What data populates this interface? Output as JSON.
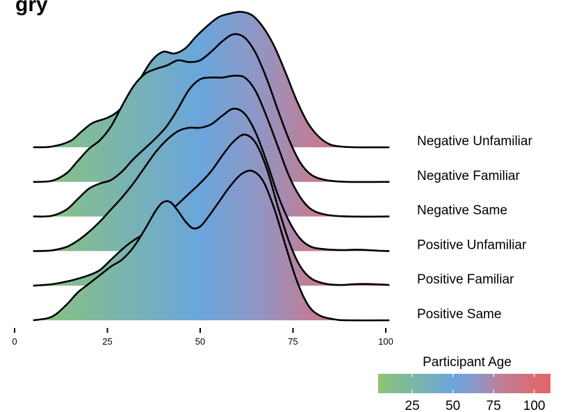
{
  "title_visible_fragment": "gry",
  "chart_data": {
    "type": "ridgeline",
    "xlim": [
      0,
      100
    ],
    "x_ticks": [
      0,
      25,
      50,
      75,
      100
    ],
    "color_scale": {
      "title": "Participant Age",
      "ticks": [
        25,
        50,
        75,
        100
      ],
      "range": [
        4,
        110
      ],
      "stops": [
        {
          "value": 5,
          "color": "#8cc47a"
        },
        {
          "value": 50,
          "color": "#6aa6dc"
        },
        {
          "value": 65,
          "color": "#8e97c6"
        },
        {
          "value": 80,
          "color": "#c07e98"
        },
        {
          "value": 110,
          "color": "#e36363"
        }
      ]
    },
    "series": [
      {
        "name": "Negative Unfamiliar",
        "points": [
          [
            5,
            0
          ],
          [
            10,
            0.02
          ],
          [
            15,
            0.18
          ],
          [
            18,
            0.45
          ],
          [
            21,
            0.7
          ],
          [
            25,
            0.85
          ],
          [
            28,
            1.05
          ],
          [
            31,
            1.45
          ],
          [
            34,
            2.0
          ],
          [
            37,
            2.5
          ],
          [
            40,
            2.75
          ],
          [
            43,
            2.7
          ],
          [
            46,
            2.85
          ],
          [
            49,
            3.2
          ],
          [
            52,
            3.5
          ],
          [
            55,
            3.75
          ],
          [
            58,
            3.85
          ],
          [
            61,
            3.9
          ],
          [
            64,
            3.8
          ],
          [
            67,
            3.45
          ],
          [
            70,
            2.9
          ],
          [
            73,
            2.15
          ],
          [
            76,
            1.35
          ],
          [
            79,
            0.7
          ],
          [
            82,
            0.3
          ],
          [
            85,
            0.08
          ],
          [
            88,
            0.02
          ],
          [
            92,
            0
          ],
          [
            101,
            0
          ]
        ]
      },
      {
        "name": "Negative Familiar",
        "points": [
          [
            5,
            0
          ],
          [
            10,
            0.03
          ],
          [
            14,
            0.25
          ],
          [
            17,
            0.6
          ],
          [
            20,
            0.95
          ],
          [
            23,
            1.2
          ],
          [
            26,
            1.6
          ],
          [
            29,
            2.2
          ],
          [
            32,
            2.75
          ],
          [
            35,
            3.1
          ],
          [
            38,
            3.25
          ],
          [
            41,
            3.35
          ],
          [
            44,
            3.5
          ],
          [
            47,
            3.45
          ],
          [
            50,
            3.5
          ],
          [
            53,
            3.75
          ],
          [
            56,
            4.05
          ],
          [
            59,
            4.25
          ],
          [
            62,
            4.15
          ],
          [
            65,
            3.7
          ],
          [
            68,
            2.95
          ],
          [
            71,
            2.05
          ],
          [
            74,
            1.2
          ],
          [
            77,
            0.55
          ],
          [
            80,
            0.2
          ],
          [
            84,
            0.05
          ],
          [
            90,
            0
          ],
          [
            101,
            0
          ]
        ]
      },
      {
        "name": "Negative Same",
        "points": [
          [
            5,
            0
          ],
          [
            10,
            0.02
          ],
          [
            14,
            0.2
          ],
          [
            17,
            0.5
          ],
          [
            20,
            0.8
          ],
          [
            23,
            0.95
          ],
          [
            26,
            1.05
          ],
          [
            29,
            1.3
          ],
          [
            32,
            1.65
          ],
          [
            35,
            1.95
          ],
          [
            38,
            2.25
          ],
          [
            41,
            2.6
          ],
          [
            44,
            3.1
          ],
          [
            47,
            3.65
          ],
          [
            50,
            3.95
          ],
          [
            53,
            4.0
          ],
          [
            56,
            4.0
          ],
          [
            59,
            4.05
          ],
          [
            62,
            4.0
          ],
          [
            65,
            3.6
          ],
          [
            68,
            2.85
          ],
          [
            71,
            2.0
          ],
          [
            74,
            1.15
          ],
          [
            77,
            0.55
          ],
          [
            80,
            0.2
          ],
          [
            84,
            0.05
          ],
          [
            90,
            0
          ],
          [
            101,
            0
          ]
        ]
      },
      {
        "name": "Positive Unfamiliar",
        "points": [
          [
            5,
            0
          ],
          [
            10,
            0.02
          ],
          [
            14,
            0.12
          ],
          [
            17,
            0.3
          ],
          [
            20,
            0.55
          ],
          [
            23,
            0.85
          ],
          [
            26,
            1.2
          ],
          [
            29,
            1.55
          ],
          [
            32,
            1.95
          ],
          [
            35,
            2.4
          ],
          [
            38,
            2.85
          ],
          [
            41,
            3.2
          ],
          [
            44,
            3.45
          ],
          [
            47,
            3.55
          ],
          [
            50,
            3.55
          ],
          [
            53,
            3.65
          ],
          [
            56,
            3.9
          ],
          [
            59,
            4.1
          ],
          [
            62,
            3.95
          ],
          [
            65,
            3.4
          ],
          [
            68,
            2.55
          ],
          [
            71,
            1.6
          ],
          [
            74,
            0.85
          ],
          [
            77,
            0.35
          ],
          [
            80,
            0.12
          ],
          [
            84,
            0.05
          ],
          [
            88,
            0.03
          ],
          [
            92,
            0.04
          ],
          [
            95,
            0.03
          ],
          [
            98,
            0.01
          ],
          [
            101,
            0
          ]
        ]
      },
      {
        "name": "Positive Familiar",
        "points": [
          [
            5,
            0
          ],
          [
            10,
            0.04
          ],
          [
            14,
            0.12
          ],
          [
            17,
            0.2
          ],
          [
            20,
            0.3
          ],
          [
            23,
            0.45
          ],
          [
            26,
            0.75
          ],
          [
            29,
            1.05
          ],
          [
            32,
            1.3
          ],
          [
            35,
            1.5
          ],
          [
            38,
            1.75
          ],
          [
            41,
            2.05
          ],
          [
            44,
            2.35
          ],
          [
            47,
            2.65
          ],
          [
            50,
            2.95
          ],
          [
            53,
            3.3
          ],
          [
            56,
            3.75
          ],
          [
            59,
            4.15
          ],
          [
            62,
            4.35
          ],
          [
            65,
            4.1
          ],
          [
            68,
            3.35
          ],
          [
            71,
            2.25
          ],
          [
            74,
            1.25
          ],
          [
            77,
            0.55
          ],
          [
            80,
            0.2
          ],
          [
            84,
            0.05
          ],
          [
            88,
            0.02
          ],
          [
            91,
            0.04
          ],
          [
            94,
            0.05
          ],
          [
            97,
            0.04
          ],
          [
            101,
            0.02
          ]
        ]
      },
      {
        "name": "Positive Same",
        "points": [
          [
            5,
            0
          ],
          [
            10,
            0.1
          ],
          [
            14,
            0.45
          ],
          [
            17,
            0.8
          ],
          [
            20,
            1.05
          ],
          [
            23,
            1.3
          ],
          [
            26,
            1.55
          ],
          [
            29,
            1.75
          ],
          [
            32,
            2.1
          ],
          [
            35,
            2.6
          ],
          [
            38,
            3.15
          ],
          [
            40,
            3.4
          ],
          [
            42,
            3.4
          ],
          [
            44,
            3.15
          ],
          [
            46,
            2.85
          ],
          [
            48,
            2.65
          ],
          [
            50,
            2.7
          ],
          [
            52,
            2.95
          ],
          [
            55,
            3.4
          ],
          [
            58,
            3.85
          ],
          [
            61,
            4.2
          ],
          [
            64,
            4.3
          ],
          [
            67,
            4.0
          ],
          [
            70,
            3.2
          ],
          [
            73,
            2.15
          ],
          [
            76,
            1.15
          ],
          [
            79,
            0.45
          ],
          [
            82,
            0.15
          ],
          [
            86,
            0.03
          ],
          [
            90,
            0
          ],
          [
            101,
            0
          ]
        ]
      }
    ]
  }
}
